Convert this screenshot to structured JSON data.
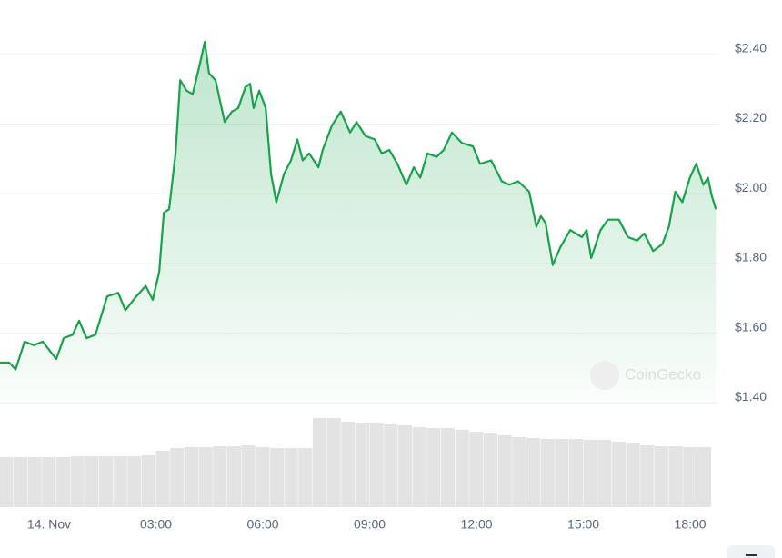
{
  "chart_data": {
    "type": "line",
    "x": [
      -1.38,
      -1.12,
      -0.94,
      -0.69,
      -0.43,
      -0.18,
      0.2,
      0.41,
      0.66,
      0.84,
      1.05,
      1.3,
      1.63,
      1.94,
      2.14,
      2.45,
      2.71,
      2.91,
      3.09,
      3.22,
      3.37,
      3.55,
      3.68,
      3.86,
      4.03,
      4.24,
      4.37,
      4.49,
      4.67,
      4.93,
      5.13,
      5.31,
      5.51,
      5.64,
      5.74,
      5.9,
      6.08,
      6.23,
      6.38,
      6.59,
      6.79,
      6.97,
      7.12,
      7.3,
      7.56,
      7.68,
      7.94,
      8.19,
      8.45,
      8.63,
      8.88,
      9.14,
      9.34,
      9.55,
      9.78,
      10.03,
      10.24,
      10.42,
      10.62,
      10.88,
      11.08,
      11.31,
      11.59,
      11.9,
      12.1,
      12.41,
      12.71,
      12.92,
      13.17,
      13.48,
      13.68,
      13.81,
      13.94,
      14.14,
      14.35,
      14.63,
      14.96,
      15.09,
      15.22,
      15.48,
      15.69,
      16.0,
      16.25,
      16.51,
      16.71,
      16.96,
      17.22,
      17.4,
      17.58,
      17.78,
      17.99,
      18.17,
      18.37,
      18.5,
      18.6,
      18.72
    ],
    "series": [
      {
        "color": "#16a34a",
        "values": [
          1.5,
          1.5,
          1.48,
          1.56,
          1.55,
          1.56,
          1.51,
          1.57,
          1.58,
          1.62,
          1.57,
          1.58,
          1.69,
          1.7,
          1.65,
          1.69,
          1.72,
          1.68,
          1.76,
          1.93,
          1.94,
          2.1,
          2.31,
          2.28,
          2.27,
          2.36,
          2.42,
          2.33,
          2.31,
          2.19,
          2.22,
          2.23,
          2.29,
          2.3,
          2.23,
          2.28,
          2.23,
          2.04,
          1.96,
          2.04,
          2.08,
          2.14,
          2.08,
          2.1,
          2.06,
          2.11,
          2.18,
          2.22,
          2.16,
          2.19,
          2.15,
          2.14,
          2.1,
          2.11,
          2.07,
          2.01,
          2.06,
          2.03,
          2.1,
          2.09,
          2.11,
          2.16,
          2.13,
          2.12,
          2.07,
          2.08,
          2.02,
          2.01,
          2.02,
          1.99,
          1.89,
          1.92,
          1.9,
          1.78,
          1.83,
          1.88,
          1.86,
          1.88,
          1.8,
          1.88,
          1.91,
          1.91,
          1.86,
          1.85,
          1.87,
          1.82,
          1.84,
          1.89,
          1.99,
          1.96,
          2.03,
          2.07,
          2.01,
          2.03,
          1.98,
          1.94
        ]
      }
    ],
    "xlim": [
      -1.38,
      18.79
    ],
    "ylim": [
      1.38,
      2.54
    ],
    "xticks": [
      {
        "value": 0,
        "label": "14. Nov"
      },
      {
        "value": 3,
        "label": "03:00"
      },
      {
        "value": 6,
        "label": "06:00"
      },
      {
        "value": 9,
        "label": "09:00"
      },
      {
        "value": 12,
        "label": "12:00"
      },
      {
        "value": 15,
        "label": "15:00"
      },
      {
        "value": 18,
        "label": "18:00"
      }
    ],
    "yticks": [
      {
        "value": 1.4,
        "label": "$1.40"
      },
      {
        "value": 1.6,
        "label": "$1.60"
      },
      {
        "value": 1.8,
        "label": "$1.80"
      },
      {
        "value": 2.0,
        "label": "$2.00"
      },
      {
        "value": 2.2,
        "label": "$2.20"
      },
      {
        "value": 2.4,
        "label": "$2.40"
      }
    ],
    "grid": true,
    "watermark": "CoinGecko",
    "volume": {
      "color": "#e3e3e3",
      "ylim": [
        0,
        113
      ],
      "x": [
        -1.2,
        -0.8,
        -0.4,
        0,
        0.4,
        0.8,
        1.2,
        1.6,
        2.0,
        2.4,
        2.8,
        3.2,
        3.6,
        4.0,
        4.4,
        4.8,
        5.2,
        5.6,
        6.0,
        6.4,
        6.8,
        7.2,
        7.6,
        8.0,
        8.4,
        8.8,
        9.2,
        9.6,
        10.0,
        10.4,
        10.8,
        11.2,
        11.6,
        12.0,
        12.4,
        12.8,
        13.2,
        13.6,
        14.0,
        14.4,
        14.8,
        15.2,
        15.6,
        16.0,
        16.4,
        16.8,
        17.2,
        17.6,
        18.0,
        18.4
      ],
      "values": [
        55,
        55,
        55,
        55,
        55,
        56,
        56,
        56,
        56,
        56,
        57,
        62,
        65,
        66,
        66,
        67,
        67,
        68,
        66,
        65,
        65,
        65,
        98,
        98,
        94,
        93,
        92,
        91,
        90,
        88,
        87,
        87,
        85,
        83,
        81,
        79,
        77,
        76,
        75,
        75,
        75,
        74,
        74,
        72,
        70,
        68,
        67,
        67,
        66,
        66
      ]
    }
  }
}
